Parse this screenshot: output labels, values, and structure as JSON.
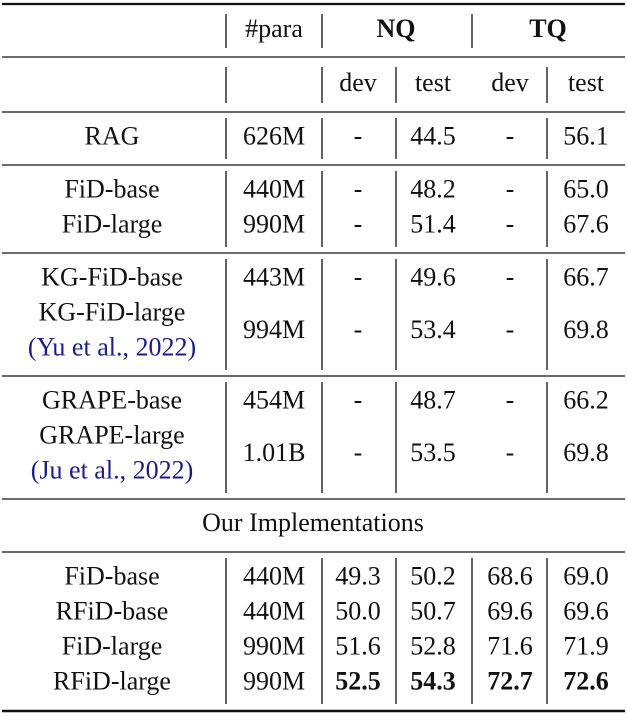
{
  "header": {
    "para": "#para",
    "nq": "NQ",
    "tq": "TQ",
    "sub": [
      "dev",
      "test",
      "dev",
      "test"
    ]
  },
  "groups": [
    {
      "rows": [
        {
          "label": "RAG",
          "cells": [
            "626M",
            "-",
            "44.5",
            "-",
            "56.1"
          ]
        }
      ]
    },
    {
      "rows": [
        {
          "label": "FiD-base",
          "cells": [
            "440M",
            "-",
            "48.2",
            "-",
            "65.0"
          ]
        },
        {
          "label": "FiD-large",
          "cells": [
            "990M",
            "-",
            "51.4",
            "-",
            "67.6"
          ]
        }
      ]
    },
    {
      "rows": [
        {
          "label": "KG-FiD-base",
          "cells": [
            "443M",
            "-",
            "49.6",
            "-",
            "66.7"
          ]
        },
        {
          "label": "KG-FiD-large",
          "citation": "(Yu et al., 2022)",
          "cells": [
            "994M",
            "-",
            "53.4",
            "-",
            "69.8"
          ]
        }
      ]
    },
    {
      "rows": [
        {
          "label": "GRAPE-base",
          "cells": [
            "454M",
            "-",
            "48.7",
            "-",
            "66.2"
          ]
        },
        {
          "label": "GRAPE-large",
          "citation": "(Ju et al., 2022)",
          "cells": [
            "1.01B",
            "-",
            "53.5",
            "-",
            "69.8"
          ]
        }
      ]
    }
  ],
  "section_title": "Our Implementations",
  "implementations": {
    "rows": [
      {
        "label": "FiD-base",
        "cells": [
          "440M",
          "49.3",
          "50.2",
          "68.6",
          "69.0"
        ]
      },
      {
        "label": "RFiD-base",
        "cells": [
          "440M",
          "50.0",
          "50.7",
          "69.6",
          "69.6"
        ]
      },
      {
        "label": "FiD-large",
        "cells": [
          "990M",
          "51.6",
          "52.8",
          "71.6",
          "71.9"
        ]
      },
      {
        "label": "RFiD-large",
        "cells": [
          "990M",
          {
            "text": "52.5",
            "bold": true
          },
          {
            "text": "54.3",
            "bold": true
          },
          {
            "text": "72.7",
            "bold": true
          },
          {
            "text": "72.6",
            "bold": true
          }
        ]
      }
    ]
  }
}
